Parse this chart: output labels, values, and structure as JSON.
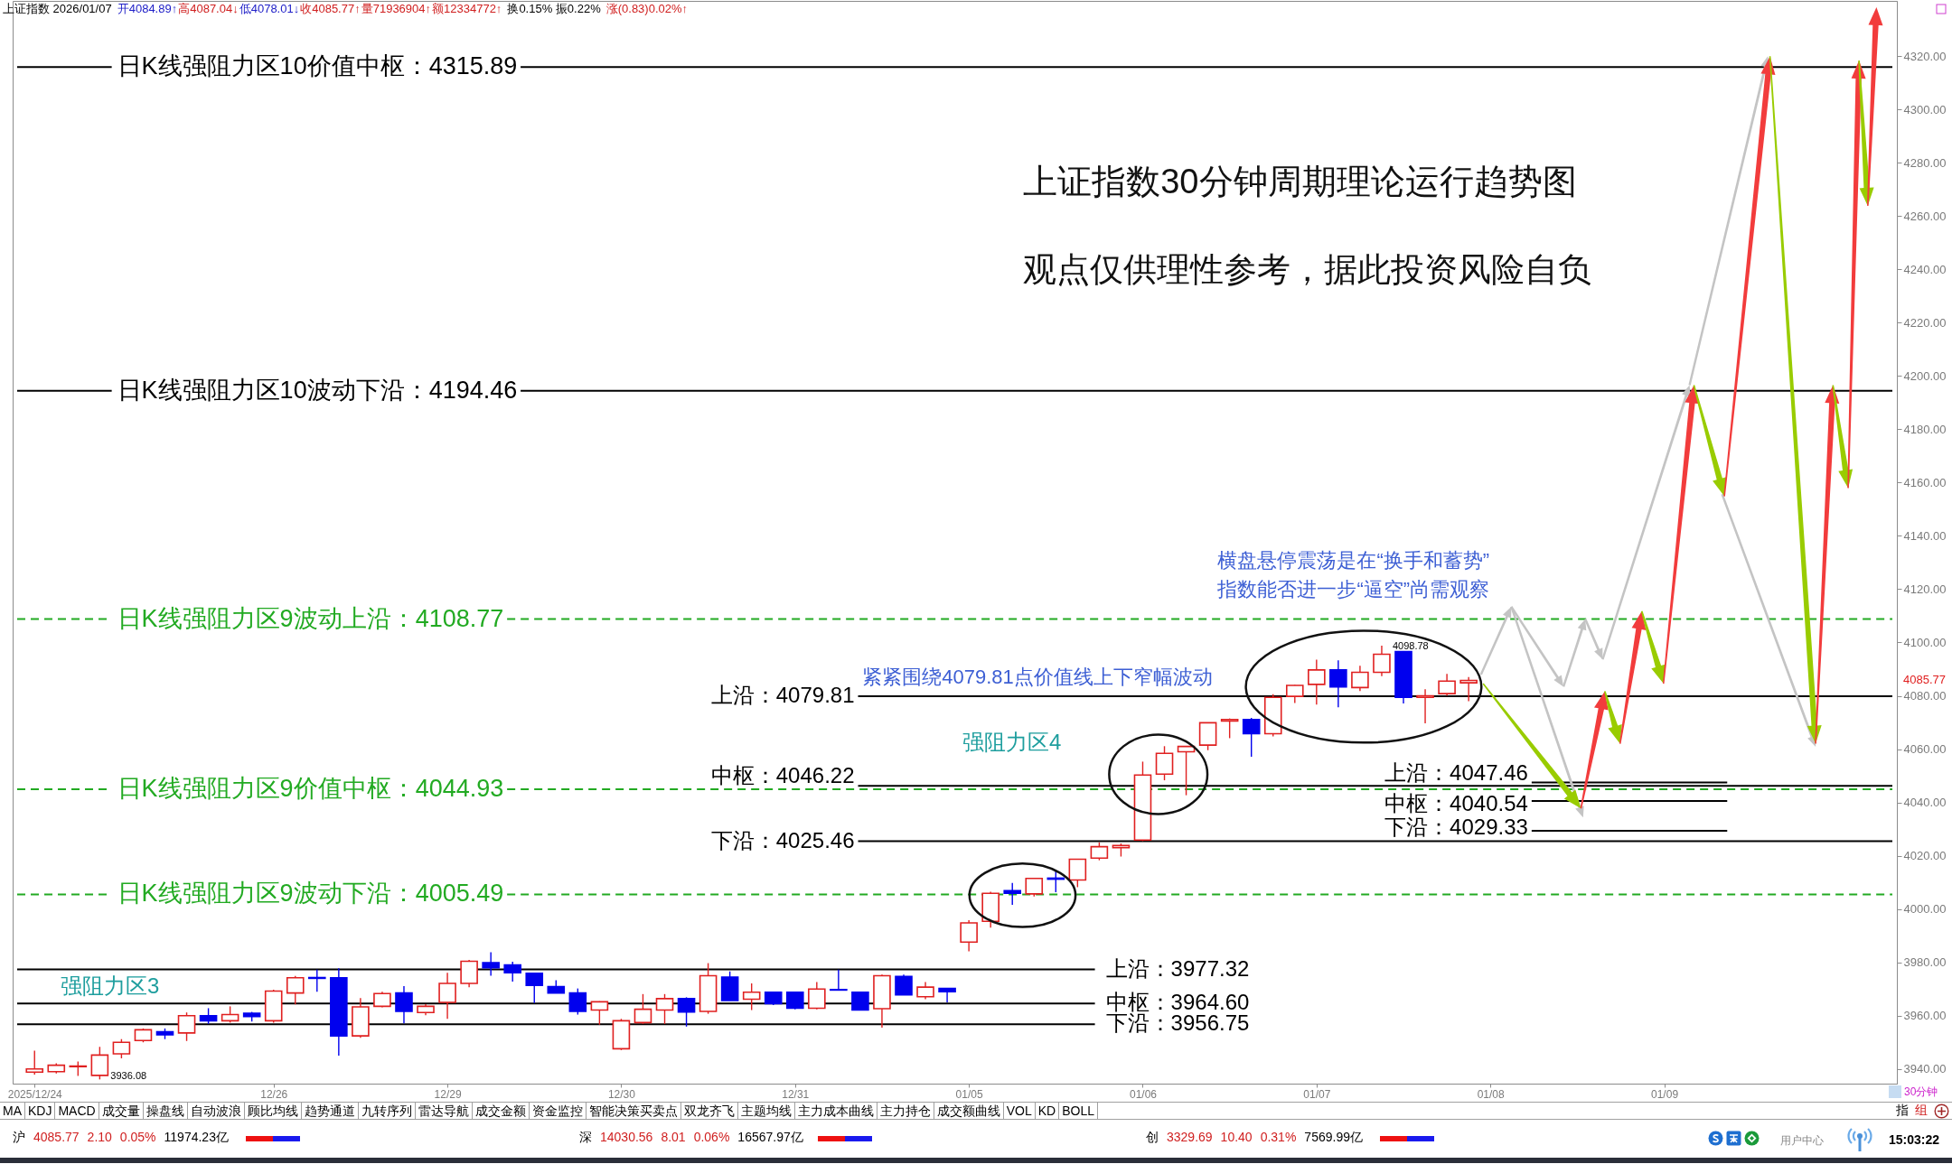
{
  "chart_data": {
    "type": "candlestick",
    "title": "上证指数30分钟周期理论运行趋势图",
    "subtitle": "观点仅供理性参考，据此投资风险自负",
    "categories": [
      "2025/12/24",
      null,
      null,
      null,
      null,
      null,
      null,
      null,
      null,
      null,
      null,
      "12/26",
      null,
      null,
      null,
      null,
      null,
      null,
      null,
      "12/29",
      null,
      null,
      null,
      null,
      null,
      null,
      null,
      "12/30",
      null,
      null,
      null,
      null,
      null,
      null,
      null,
      "12/31",
      null,
      null,
      null,
      null,
      null,
      null,
      null,
      "01/05",
      null,
      null,
      null,
      null,
      null,
      null,
      null,
      "01/06",
      null,
      null,
      null,
      null,
      null,
      null,
      null,
      "01/07",
      null,
      null,
      null,
      null,
      null,
      null,
      null,
      "01/08",
      null,
      null,
      null,
      null,
      null,
      null,
      null,
      "01/09",
      null,
      null,
      null,
      null,
      null,
      null,
      null,
      null,
      null,
      null
    ],
    "ohlc": [
      [
        3938.8,
        3946.9,
        3937.9,
        3940.0
      ],
      [
        3939.0,
        3942.1,
        3938.3,
        3941.4
      ],
      [
        3940.9,
        3942.8,
        3937.4,
        3941.1
      ],
      [
        3937.6,
        3948.3,
        3936.08,
        3945.2
      ],
      [
        3945.7,
        3951.2,
        3944.0,
        3950.0
      ],
      [
        3950.7,
        3955.2,
        3950.0,
        3954.7
      ],
      [
        3954.0,
        3955.2,
        3951.2,
        3952.8
      ],
      [
        3953.5,
        3961.2,
        3950.5,
        3960.0
      ],
      [
        3960.0,
        3962.8,
        3956.9,
        3958.1
      ],
      [
        3958.1,
        3963.5,
        3957.4,
        3960.4
      ],
      [
        3960.9,
        3961.4,
        3957.8,
        3959.7
      ],
      [
        3958.1,
        3969.7,
        3957.4,
        3969.2
      ],
      [
        3968.5,
        3974.9,
        3964.2,
        3974.2
      ],
      [
        3974.3,
        3977.3,
        3969.0,
        3974.0
      ],
      [
        3974.2,
        3977.8,
        3945.0,
        3952.4
      ],
      [
        3952.4,
        3966.6,
        3951.7,
        3963.3
      ],
      [
        3963.5,
        3969.0,
        3963.1,
        3968.3
      ],
      [
        3968.5,
        3971.1,
        3957.1,
        3961.6
      ],
      [
        3961.2,
        3964.3,
        3960.2,
        3963.5
      ],
      [
        3965.0,
        3976.1,
        3958.8,
        3972.1
      ],
      [
        3972.1,
        3980.9,
        3970.7,
        3980.4
      ],
      [
        3979.9,
        3983.8,
        3975.0,
        3978.0
      ],
      [
        3979.0,
        3980.2,
        3972.8,
        3976.1
      ],
      [
        3975.9,
        3975.9,
        3964.7,
        3971.4
      ],
      [
        3970.9,
        3973.3,
        3968.5,
        3968.5
      ],
      [
        3968.5,
        3970.2,
        3960.4,
        3961.6
      ],
      [
        3962.1,
        3965.4,
        3956.6,
        3965.2
      ],
      [
        3947.6,
        3958.8,
        3947.1,
        3958.1
      ],
      [
        3957.4,
        3968.1,
        3956.9,
        3962.4
      ],
      [
        3962.1,
        3968.1,
        3956.9,
        3966.4
      ],
      [
        3966.4,
        3966.9,
        3955.9,
        3961.4
      ],
      [
        3961.6,
        3979.7,
        3960.7,
        3975.0
      ],
      [
        3974.5,
        3976.6,
        3965.7,
        3965.7
      ],
      [
        3966.2,
        3972.1,
        3962.1,
        3968.8
      ],
      [
        3968.8,
        3968.8,
        3964.0,
        3964.5
      ],
      [
        3968.8,
        3968.8,
        3962.4,
        3962.8
      ],
      [
        3962.8,
        3972.6,
        3962.4,
        3970.0
      ],
      [
        3969.8,
        3977.3,
        3969.6,
        3969.6
      ],
      [
        3968.8,
        3968.8,
        3962.1,
        3962.1
      ],
      [
        3962.6,
        3975.4,
        3955.5,
        3975.0
      ],
      [
        3974.7,
        3975.4,
        3967.8,
        3967.8
      ],
      [
        3967.1,
        3972.6,
        3966.2,
        3970.7
      ],
      [
        3970.2,
        3970.2,
        3965.0,
        3969.0
      ],
      [
        3987.6,
        3995.8,
        3984.1,
        3994.8
      ],
      [
        3995.4,
        4006.5,
        3993.0,
        4005.9
      ],
      [
        4006.9,
        4009.8,
        4001.6,
        4005.9
      ],
      [
        4005.7,
        4011.5,
        4004.7,
        4011.5
      ],
      [
        4011.6,
        4014.8,
        4006.3,
        4011.2
      ],
      [
        4010.9,
        4018.7,
        4008.2,
        4018.7
      ],
      [
        4019.1,
        4025.0,
        4018.3,
        4023.4
      ],
      [
        4023.0,
        4024.6,
        4019.7,
        4023.8
      ],
      [
        4025.9,
        4055.3,
        4025.5,
        4050.3
      ],
      [
        4050.6,
        4061.1,
        4048.3,
        4058.4
      ],
      [
        4059.0,
        4061.0,
        4042.7,
        4061.0
      ],
      [
        4061.5,
        4069.9,
        4059.6,
        4069.9
      ],
      [
        4070.5,
        4071.5,
        4064.1,
        4071.1
      ],
      [
        4071.1,
        4071.7,
        4057.1,
        4065.8
      ],
      [
        4065.8,
        4080.6,
        4064.8,
        4079.4
      ],
      [
        4079.8,
        4084.1,
        4077.3,
        4083.9
      ],
      [
        4084.3,
        4093.6,
        4076.7,
        4089.7
      ],
      [
        4089.7,
        4093.3,
        4075.7,
        4083.3
      ],
      [
        4083.1,
        4091.3,
        4081.8,
        4088.8
      ],
      [
        4088.8,
        4098.78,
        4087.4,
        4095.6
      ],
      [
        4096.6,
        4096.6,
        4077.1,
        4079.4
      ],
      [
        4079.4,
        4082.5,
        4069.7,
        4080.0
      ],
      [
        4080.8,
        4088.2,
        4080.0,
        4085.5
      ],
      [
        4084.89,
        4087.04,
        4078.01,
        4085.77
      ],
      null,
      null,
      null,
      null,
      null,
      null,
      null,
      null,
      null,
      null,
      null,
      null,
      null,
      null,
      null,
      null,
      null,
      null,
      null
    ],
    "colors": [
      "#e02020",
      "#e02020",
      "#e02020",
      "#e02020",
      "#e02020",
      "#e02020",
      "#0000ee",
      "#e02020",
      "#0000ee",
      "#e02020",
      "#0000ee",
      "#e02020",
      "#e02020",
      "#0000ee",
      "#0000ee",
      "#e02020",
      "#e02020",
      "#0000ee",
      "#e02020",
      "#e02020",
      "#e02020",
      "#0000ee",
      "#0000ee",
      "#0000ee",
      "#0000ee",
      "#0000ee",
      "#e02020",
      "#e02020",
      "#e02020",
      "#e02020",
      "#0000ee",
      "#e02020",
      "#0000ee",
      "#e02020",
      "#0000ee",
      "#0000ee",
      "#e02020",
      "#0000ee",
      "#0000ee",
      "#e02020",
      "#0000ee",
      "#e02020",
      "#0000ee",
      "#e02020",
      "#e02020",
      "#0000ee",
      "#e02020",
      "#0000ee",
      "#e02020",
      "#e02020",
      "#e02020",
      "#e02020",
      "#e02020",
      "#e02020",
      "#e02020",
      "#e02020",
      "#0000ee",
      "#e02020",
      "#e02020",
      "#e02020",
      "#0000ee",
      "#e02020",
      "#e02020",
      "#0000ee",
      "#e02020",
      "#e02020",
      "#e02020",
      null,
      null,
      null,
      null,
      null,
      null,
      null,
      null,
      null,
      null,
      null,
      null,
      null,
      null,
      null,
      null,
      null,
      null,
      null
    ],
    "ref_lines": [
      {
        "axis": "y",
        "value": 4315.89,
        "label": "日K线强阻力区10价值中枢：4315.89",
        "color": "#000000"
      },
      {
        "axis": "y",
        "value": 4194.46,
        "label": "日K线强阻力区10波动下沿：4194.46",
        "color": "#000000"
      },
      {
        "axis": "y",
        "value": 4108.77,
        "label": "日K线强阻力区9波动上沿：4108.77",
        "color": "#22aa22",
        "line_style": "dashed"
      },
      {
        "axis": "y",
        "value": 4044.93,
        "label": "日K线强阻力区9价值中枢：4044.93",
        "color": "#22aa22",
        "line_style": "dashed"
      },
      {
        "axis": "y",
        "value": 4005.49,
        "label": "日K线强阻力区9波动下沿：4005.49",
        "color": "#22aa22",
        "line_style": "dashed"
      },
      {
        "axis": "y",
        "value": 4079.81,
        "label": "上沿：4079.81",
        "color": "#000000"
      },
      {
        "axis": "y",
        "value": 4046.22,
        "label": "中枢：4046.22",
        "color": "#000000"
      },
      {
        "axis": "y",
        "value": 4025.46,
        "label": "下沿：4025.46",
        "color": "#000000"
      },
      {
        "axis": "y",
        "value": 4047.46,
        "label": "上沿：4047.46",
        "color": "#000000"
      },
      {
        "axis": "y",
        "value": 4040.54,
        "label": "中枢：4040.54",
        "color": "#000000"
      },
      {
        "axis": "y",
        "value": 4029.33,
        "label": "下沿：4029.33",
        "color": "#000000"
      },
      {
        "axis": "y",
        "value": 3977.32,
        "label": "上沿：3977.32",
        "color": "#000000"
      },
      {
        "axis": "y",
        "value": 3964.6,
        "label": "中枢：3964.60",
        "color": "#000000"
      },
      {
        "axis": "y",
        "value": 3956.75,
        "label": "下沿：3956.75",
        "color": "#000000"
      }
    ],
    "ylim": [
      3934.5,
      4340.7
    ],
    "yticks": [
      {
        "value": 3940,
        "label": "3940.00"
      },
      {
        "value": 3960,
        "label": "3960.00"
      },
      {
        "value": 3980,
        "label": "3980.00"
      },
      {
        "value": 4000,
        "label": "4000.00"
      },
      {
        "value": 4020,
        "label": "4020.00"
      },
      {
        "value": 4040,
        "label": "4040.00"
      },
      {
        "value": 4060,
        "label": "4060.00"
      },
      {
        "value": 4080,
        "label": "4080.00"
      },
      {
        "value": 4100,
        "label": "4100.00"
      },
      {
        "value": 4120,
        "label": "4120.00"
      },
      {
        "value": 4140,
        "label": "4140.00"
      },
      {
        "value": 4160,
        "label": "4160.00"
      },
      {
        "value": 4180,
        "label": "4180.00"
      },
      {
        "value": 4200,
        "label": "4200.00"
      },
      {
        "value": 4220,
        "label": "4220.00"
      },
      {
        "value": 4240,
        "label": "4240.00"
      },
      {
        "value": 4260,
        "label": "4260.00"
      },
      {
        "value": 4280,
        "label": "4280.00"
      },
      {
        "value": 4300,
        "label": "4300.00"
      },
      {
        "value": 4320,
        "label": "4320.00"
      }
    ],
    "annotations": [
      "紧紧围绕4079.81点价值线上下窄幅波动",
      "横盘悬停震荡是在“换手和蓄势”",
      "指数能否进一步“逼空”尚需观察",
      "强阻力区4",
      "强阻力区3",
      "4098.78",
      "3936.08",
      "4085.77",
      "上证指数 2026/01/07",
      "开4084.89↑",
      "高4087.04↓",
      "低4078.01↓",
      "收4085.77↑",
      "量71936904↑",
      "额12334772↑",
      "换0.15% 振0.22%",
      "涨(0.83)0.02%↑",
      "MA",
      "KDJ",
      "MACD",
      "成交量",
      "操盘线",
      "自动波浪",
      "顾比均线",
      "趋势通道",
      "九转序列",
      "雷达导航",
      "成交金额",
      "资金监控",
      "智能决策买卖点",
      "双龙齐飞",
      "主题均线",
      "主力成本曲线",
      "主力持仓",
      "成交额曲线",
      "VOL",
      "KD",
      "BOLL",
      "沪 4085.77 2.10 0.05% 11974.23亿",
      "深 14030.56 8.01 0.06% 16567.97亿",
      "创 3329.69 10.40 0.31% 7569.99亿",
      "用户中心",
      "15:03:22",
      "30分钟",
      "指",
      "组"
    ]
  }
}
